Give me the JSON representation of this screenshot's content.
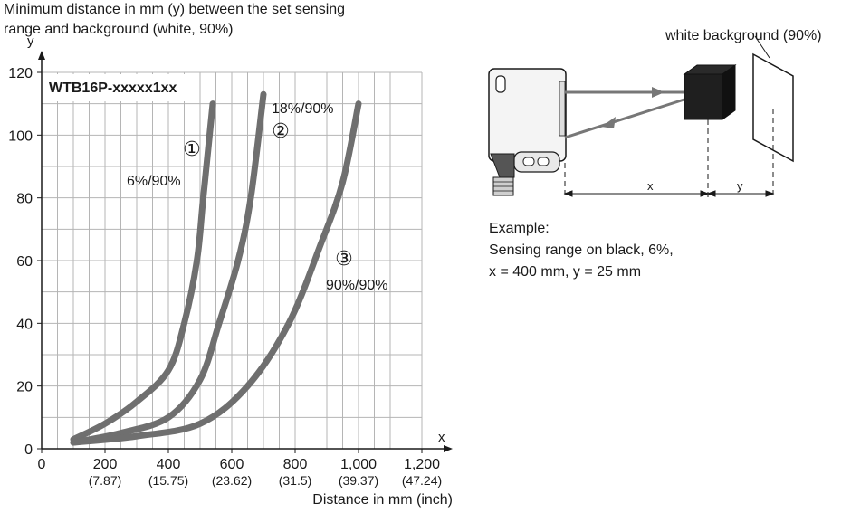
{
  "chart_data": {
    "type": "line",
    "title_lines": [
      "Minimum distance in mm (y) between the set sensing",
      "range and background (white, 90%)"
    ],
    "model_label": "WTB16P-xxxxx1xx",
    "y_axis_letter": "y",
    "x_axis_letter": "x",
    "xlabel": "Distance in mm (inch)",
    "xlim": [
      0,
      1200
    ],
    "ylim": [
      0,
      120
    ],
    "grid": true,
    "x_ticks": [
      {
        "value": 0,
        "label": "0",
        "sub": ""
      },
      {
        "value": 200,
        "label": "200",
        "sub": "(7.87)"
      },
      {
        "value": 400,
        "label": "400",
        "sub": "(15.75)"
      },
      {
        "value": 600,
        "label": "600",
        "sub": "(23.62)"
      },
      {
        "value": 800,
        "label": "800",
        "sub": "(31.5)"
      },
      {
        "value": 1000,
        "label": "1,000",
        "sub": "(39.37)"
      },
      {
        "value": 1200,
        "label": "1,200",
        "sub": "(47.24)"
      }
    ],
    "y_ticks": [
      {
        "value": 0,
        "label": "0"
      },
      {
        "value": 20,
        "label": "20"
      },
      {
        "value": 40,
        "label": "40"
      },
      {
        "value": 60,
        "label": "60"
      },
      {
        "value": 80,
        "label": "80"
      },
      {
        "value": 100,
        "label": "100"
      },
      {
        "value": 120,
        "label": "120"
      }
    ],
    "series": [
      {
        "marker": "①",
        "name": "6%/90%",
        "x": [
          100,
          200,
          300,
          400,
          450,
          490,
          510,
          540
        ],
        "y": [
          3,
          8,
          15,
          25,
          40,
          60,
          80,
          110
        ]
      },
      {
        "marker": "②",
        "name": "18%/90%",
        "x": [
          100,
          250,
          400,
          500,
          560,
          620,
          660,
          700
        ],
        "y": [
          2,
          5,
          10,
          22,
          40,
          60,
          80,
          113
        ]
      },
      {
        "marker": "③",
        "name": "90%/90%",
        "x": [
          100,
          300,
          500,
          650,
          780,
          880,
          950,
          1000
        ],
        "y": [
          2,
          4,
          8,
          20,
          40,
          65,
          85,
          110
        ]
      }
    ],
    "line_color": "#6f6f6f",
    "grid_color": "#b5b5b5"
  },
  "diagram": {
    "background_label": "white background (90%)",
    "x_dim_label": "x",
    "y_dim_label": "y",
    "example_lines": [
      "Example:",
      "Sensing range on black, 6%,",
      "x = 400 mm, y = 25 mm"
    ]
  }
}
